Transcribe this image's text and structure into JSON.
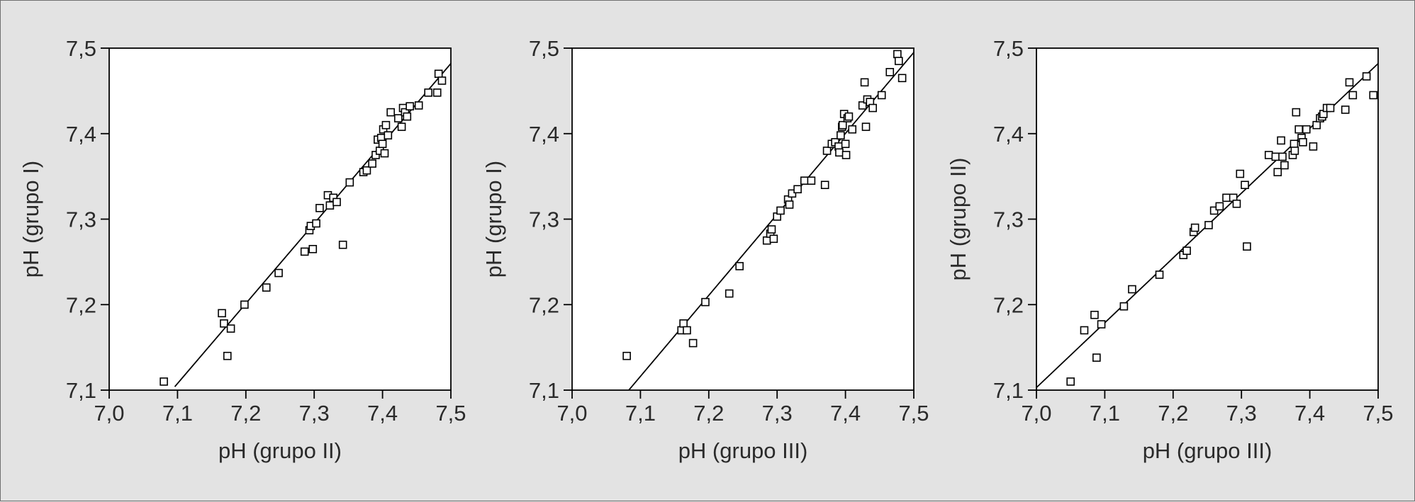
{
  "chart_data": [
    {
      "type": "scatter",
      "title": "",
      "xlabel": "pH (grupo II)",
      "ylabel": "pH (grupo I)",
      "xlim": [
        7.0,
        7.5
      ],
      "ylim": [
        7.1,
        7.5
      ],
      "xticks": [
        "7,0",
        "7,1",
        "7,2",
        "7,3",
        "7,4",
        "7,5"
      ],
      "yticks": [
        "7,1",
        "7,2",
        "7,3",
        "7,4",
        "7,5"
      ],
      "grid": false,
      "fit_line": {
        "x": [
          7.096,
          7.5
        ],
        "y": [
          7.104,
          7.482
        ]
      },
      "points": [
        [
          7.08,
          7.11
        ],
        [
          7.165,
          7.19
        ],
        [
          7.168,
          7.178
        ],
        [
          7.173,
          7.14
        ],
        [
          7.178,
          7.172
        ],
        [
          7.198,
          7.2
        ],
        [
          7.23,
          7.22
        ],
        [
          7.248,
          7.237
        ],
        [
          7.286,
          7.262
        ],
        [
          7.293,
          7.287
        ],
        [
          7.295,
          7.292
        ],
        [
          7.298,
          7.265
        ],
        [
          7.303,
          7.295
        ],
        [
          7.308,
          7.313
        ],
        [
          7.32,
          7.328
        ],
        [
          7.323,
          7.316
        ],
        [
          7.328,
          7.325
        ],
        [
          7.333,
          7.32
        ],
        [
          7.342,
          7.27
        ],
        [
          7.352,
          7.343
        ],
        [
          7.372,
          7.355
        ],
        [
          7.377,
          7.357
        ],
        [
          7.385,
          7.365
        ],
        [
          7.39,
          7.375
        ],
        [
          7.393,
          7.393
        ],
        [
          7.396,
          7.38
        ],
        [
          7.398,
          7.395
        ],
        [
          7.4,
          7.388
        ],
        [
          7.401,
          7.405
        ],
        [
          7.403,
          7.377
        ],
        [
          7.405,
          7.41
        ],
        [
          7.408,
          7.398
        ],
        [
          7.412,
          7.425
        ],
        [
          7.423,
          7.418
        ],
        [
          7.428,
          7.408
        ],
        [
          7.43,
          7.43
        ],
        [
          7.433,
          7.425
        ],
        [
          7.436,
          7.42
        ],
        [
          7.44,
          7.432
        ],
        [
          7.453,
          7.433
        ],
        [
          7.467,
          7.448
        ],
        [
          7.48,
          7.448
        ],
        [
          7.482,
          7.47
        ],
        [
          7.487,
          7.462
        ]
      ]
    },
    {
      "type": "scatter",
      "title": "",
      "xlabel": "pH (grupo III)",
      "ylabel": "pH (grupo I)",
      "xlim": [
        7.0,
        7.5
      ],
      "ylim": [
        7.1,
        7.5
      ],
      "xticks": [
        "7,0",
        "7,1",
        "7,2",
        "7,3",
        "7,4",
        "7,5"
      ],
      "yticks": [
        "7,1",
        "7,2",
        "7,3",
        "7,4",
        "7,5"
      ],
      "grid": false,
      "fit_line": {
        "x": [
          7.083,
          7.5
        ],
        "y": [
          7.1,
          7.495
        ]
      },
      "points": [
        [
          7.08,
          7.14
        ],
        [
          7.16,
          7.17
        ],
        [
          7.163,
          7.178
        ],
        [
          7.168,
          7.17
        ],
        [
          7.177,
          7.155
        ],
        [
          7.195,
          7.203
        ],
        [
          7.23,
          7.213
        ],
        [
          7.245,
          7.245
        ],
        [
          7.285,
          7.275
        ],
        [
          7.29,
          7.283
        ],
        [
          7.292,
          7.288
        ],
        [
          7.295,
          7.277
        ],
        [
          7.3,
          7.303
        ],
        [
          7.305,
          7.31
        ],
        [
          7.316,
          7.323
        ],
        [
          7.318,
          7.317
        ],
        [
          7.322,
          7.33
        ],
        [
          7.33,
          7.335
        ],
        [
          7.34,
          7.345
        ],
        [
          7.35,
          7.345
        ],
        [
          7.37,
          7.34
        ],
        [
          7.373,
          7.38
        ],
        [
          7.38,
          7.388
        ],
        [
          7.385,
          7.39
        ],
        [
          7.39,
          7.385
        ],
        [
          7.391,
          7.378
        ],
        [
          7.393,
          7.398
        ],
        [
          7.395,
          7.408
        ],
        [
          7.396,
          7.41
        ],
        [
          7.398,
          7.423
        ],
        [
          7.4,
          7.388
        ],
        [
          7.401,
          7.375
        ],
        [
          7.403,
          7.418
        ],
        [
          7.405,
          7.42
        ],
        [
          7.41,
          7.405
        ],
        [
          7.425,
          7.433
        ],
        [
          7.428,
          7.46
        ],
        [
          7.43,
          7.408
        ],
        [
          7.432,
          7.44
        ],
        [
          7.436,
          7.437
        ],
        [
          7.44,
          7.43
        ],
        [
          7.453,
          7.445
        ],
        [
          7.465,
          7.472
        ],
        [
          7.476,
          7.493
        ],
        [
          7.478,
          7.485
        ],
        [
          7.483,
          7.465
        ]
      ]
    },
    {
      "type": "scatter",
      "title": "",
      "xlabel": "pH (grupo III)",
      "ylabel": "pH (grupo II)",
      "xlim": [
        7.0,
        7.5
      ],
      "ylim": [
        7.1,
        7.5
      ],
      "xticks": [
        "7,0",
        "7,1",
        "7,2",
        "7,3",
        "7,4",
        "7,5"
      ],
      "yticks": [
        "7,1",
        "7,2",
        "7,3",
        "7,4",
        "7,5"
      ],
      "grid": false,
      "fit_line": {
        "x": [
          7.0,
          7.5
        ],
        "y": [
          7.103,
          7.482
        ]
      },
      "points": [
        [
          7.05,
          7.11
        ],
        [
          7.07,
          7.17
        ],
        [
          7.085,
          7.188
        ],
        [
          7.088,
          7.138
        ],
        [
          7.095,
          7.177
        ],
        [
          7.128,
          7.198
        ],
        [
          7.14,
          7.218
        ],
        [
          7.18,
          7.235
        ],
        [
          7.215,
          7.258
        ],
        [
          7.22,
          7.263
        ],
        [
          7.23,
          7.285
        ],
        [
          7.232,
          7.29
        ],
        [
          7.252,
          7.293
        ],
        [
          7.26,
          7.31
        ],
        [
          7.268,
          7.315
        ],
        [
          7.278,
          7.325
        ],
        [
          7.288,
          7.325
        ],
        [
          7.293,
          7.318
        ],
        [
          7.298,
          7.353
        ],
        [
          7.305,
          7.34
        ],
        [
          7.308,
          7.268
        ],
        [
          7.34,
          7.375
        ],
        [
          7.35,
          7.373
        ],
        [
          7.353,
          7.355
        ],
        [
          7.358,
          7.392
        ],
        [
          7.36,
          7.373
        ],
        [
          7.363,
          7.363
        ],
        [
          7.375,
          7.375
        ],
        [
          7.377,
          7.388
        ],
        [
          7.378,
          7.38
        ],
        [
          7.38,
          7.425
        ],
        [
          7.384,
          7.405
        ],
        [
          7.388,
          7.395
        ],
        [
          7.39,
          7.39
        ],
        [
          7.395,
          7.405
        ],
        [
          7.405,
          7.385
        ],
        [
          7.41,
          7.41
        ],
        [
          7.415,
          7.418
        ],
        [
          7.418,
          7.42
        ],
        [
          7.42,
          7.423
        ],
        [
          7.425,
          7.43
        ],
        [
          7.43,
          7.43
        ],
        [
          7.452,
          7.428
        ],
        [
          7.458,
          7.46
        ],
        [
          7.463,
          7.445
        ],
        [
          7.483,
          7.467
        ],
        [
          7.493,
          7.445
        ]
      ]
    }
  ]
}
